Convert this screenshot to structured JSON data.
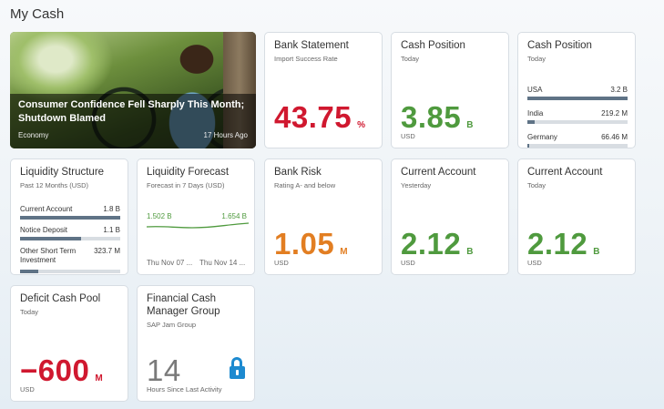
{
  "page_title": "My Cash",
  "news": {
    "headline": "Consumer Confidence Fell Sharply This Month; Shutdown Blamed",
    "category": "Economy",
    "time": "17 Hours Ago"
  },
  "bank_statement": {
    "title": "Bank Statement",
    "subtitle": "Import Success Rate",
    "value": "43.75",
    "unit": "%",
    "color": "#d0182f"
  },
  "cash_position_1": {
    "title": "Cash Position",
    "subtitle": "Today",
    "value": "3.85",
    "unit": "B",
    "footer": "USD",
    "color": "#4f9a3e"
  },
  "cash_position_2": {
    "title": "Cash Position",
    "subtitle": "Today",
    "rows": [
      {
        "label": "USA",
        "value": "3.2 B",
        "fraction": 1.0
      },
      {
        "label": "India",
        "value": "219.2 M",
        "fraction": 0.07
      },
      {
        "label": "Germany",
        "value": "66.46 M",
        "fraction": 0.02
      }
    ]
  },
  "liquidity_structure": {
    "title": "Liquidity Structure",
    "subtitle": "Past 12 Months (USD)",
    "rows": [
      {
        "label": "Current Account",
        "value": "1.8 B",
        "fraction": 1.0
      },
      {
        "label": "Notice Deposit",
        "value": "1.1 B",
        "fraction": 0.61
      },
      {
        "label": "Other Short Term Investment",
        "value": "323.7 M",
        "fraction": 0.18
      }
    ]
  },
  "liquidity_forecast": {
    "title": "Liquidity Forecast",
    "subtitle": "Forecast in 7 Days (USD)",
    "start_value": "1.502 B",
    "end_value": "1.654 B",
    "start_date": "Thu Nov 07 ...",
    "end_date": "Thu Nov 14 ...",
    "color": "#4f9a3e"
  },
  "bank_risk": {
    "title": "Bank Risk",
    "subtitle": "Rating A- and below",
    "value": "1.05",
    "unit": "M",
    "footer": "USD",
    "color": "#e27e22"
  },
  "current_account_1": {
    "title": "Current Account",
    "subtitle": "Yesterday",
    "value": "2.12",
    "unit": "B",
    "footer": "USD",
    "color": "#4f9a3e"
  },
  "current_account_2": {
    "title": "Current Account",
    "subtitle": "Today",
    "value": "2.12",
    "unit": "B",
    "footer": "USD",
    "color": "#4f9a3e"
  },
  "deficit_cash_pool": {
    "title": "Deficit Cash Pool",
    "subtitle": "Today",
    "value": "−600",
    "unit": "M",
    "footer": "USD",
    "color": "#d0182f"
  },
  "jam_group": {
    "title": "Financial Cash Manager Group",
    "subtitle": "SAP Jam Group",
    "value": "14",
    "footer": "Hours Since Last Activity",
    "icon": "lock-icon",
    "icon_color": "#1d8ad0"
  }
}
